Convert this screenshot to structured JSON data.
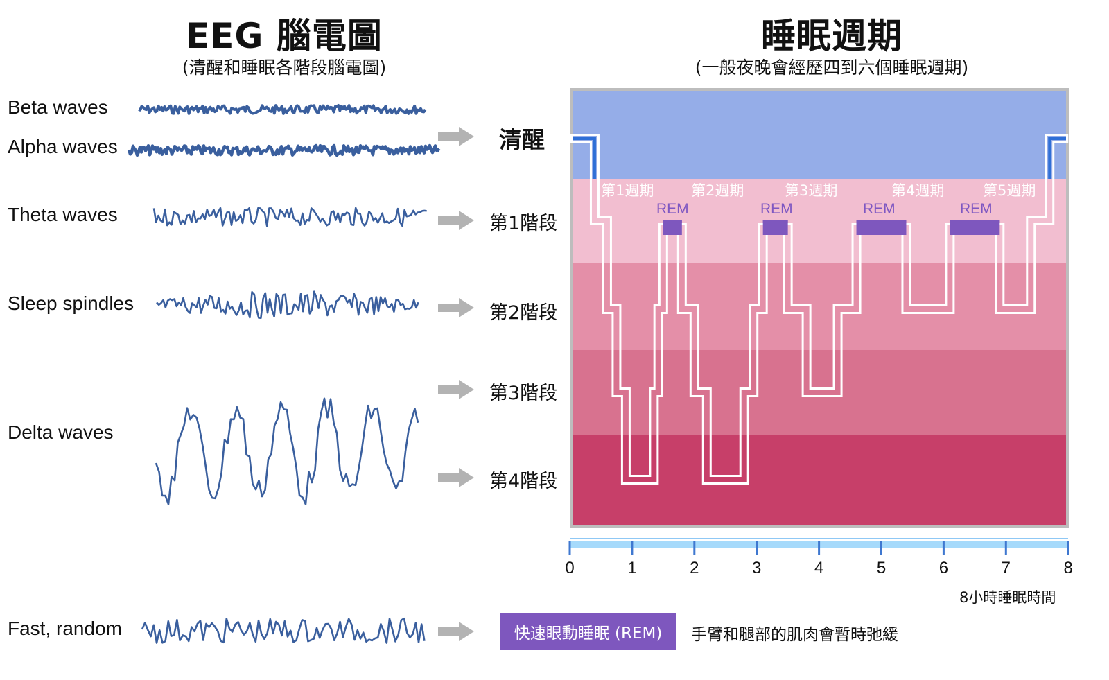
{
  "left": {
    "title": "EEG 腦電圖",
    "subtitle": "(清醒和睡眠各階段腦電圖)",
    "waves": [
      {
        "label": "Beta waves",
        "type": "beta"
      },
      {
        "label": "Alpha waves",
        "type": "alpha"
      },
      {
        "label": "Theta waves",
        "type": "theta"
      },
      {
        "label": "Sleep spindles",
        "type": "spindles"
      },
      {
        "label": "Delta waves",
        "type": "delta"
      },
      {
        "label": "Fast, random",
        "type": "fast"
      }
    ],
    "wave_color": "#3A5F9E"
  },
  "stages": [
    {
      "label": "清醒",
      "key": "awake"
    },
    {
      "label": "第1階段",
      "key": "s1"
    },
    {
      "label": "第2階段",
      "key": "s2"
    },
    {
      "label": "第3階段",
      "key": "s3"
    },
    {
      "label": "第4階段",
      "key": "s4"
    }
  ],
  "right": {
    "title": "睡眠週期",
    "subtitle": "(一般夜晚會經歷四到六個睡眠週期)",
    "cycles": [
      "第1週期",
      "第2週期",
      "第3週期",
      "第4週期",
      "第5週期"
    ],
    "rem_label": "REM",
    "axis_ticks": [
      "0",
      "1",
      "2",
      "3",
      "4",
      "5",
      "6",
      "7",
      "8"
    ],
    "axis_caption": "8小時睡眠時間",
    "legend": {
      "box_label": "快速眼動睡眠 (REM)",
      "description": "手臂和腿部的肌肉會暫時弛緩"
    }
  },
  "colors": {
    "awake": "#95ADE8",
    "s1": "#F2BED0",
    "s2": "#E48FA8",
    "s3": "#D8728F",
    "s4": "#C73F69",
    "rem": "#7E57BE",
    "awake_line": "#2F6FD6",
    "arrow": "#B3B3B3",
    "axis_bar": "#A6DAFB",
    "axis_tick": "#3F78D0"
  },
  "chart_data": {
    "type": "hypnogram",
    "title": "睡眠週期",
    "xlabel": "8小時睡眠時間",
    "xlim": [
      0,
      8
    ],
    "x_ticks": [
      0,
      1,
      2,
      3,
      4,
      5,
      6,
      7,
      8
    ],
    "y_levels": [
      "清醒",
      "REM",
      "第1階段",
      "第2階段",
      "第3階段",
      "第4階段"
    ],
    "cycles": [
      {
        "name": "第1週期",
        "rem_hours": [
          1.5,
          1.8
        ]
      },
      {
        "name": "第2週期",
        "rem_hours": [
          3.1,
          3.5
        ]
      },
      {
        "name": "第3週期",
        "rem_hours": [
          4.6,
          5.4
        ]
      },
      {
        "name": "第4週期",
        "rem_hours": [
          6.1,
          6.9
        ]
      },
      {
        "name": "第5週期",
        "rem_hours": []
      }
    ],
    "steps": [
      {
        "x": 0.0,
        "stage": "awake"
      },
      {
        "x": 0.4,
        "stage": "s1"
      },
      {
        "x": 0.6,
        "stage": "s2"
      },
      {
        "x": 0.75,
        "stage": "s3"
      },
      {
        "x": 0.9,
        "stage": "s4"
      },
      {
        "x": 1.35,
        "stage": "s3"
      },
      {
        "x": 1.42,
        "stage": "s2"
      },
      {
        "x": 1.5,
        "stage": "rem"
      },
      {
        "x": 1.8,
        "stage": "s2"
      },
      {
        "x": 2.0,
        "stage": "s3"
      },
      {
        "x": 2.2,
        "stage": "s4"
      },
      {
        "x": 2.8,
        "stage": "s3"
      },
      {
        "x": 2.95,
        "stage": "s2"
      },
      {
        "x": 3.1,
        "stage": "rem"
      },
      {
        "x": 3.5,
        "stage": "s2"
      },
      {
        "x": 3.8,
        "stage": "s3"
      },
      {
        "x": 4.3,
        "stage": "s2"
      },
      {
        "x": 4.6,
        "stage": "rem"
      },
      {
        "x": 5.4,
        "stage": "s2"
      },
      {
        "x": 6.1,
        "stage": "rem"
      },
      {
        "x": 6.9,
        "stage": "s2"
      },
      {
        "x": 7.4,
        "stage": "s1"
      },
      {
        "x": 7.7,
        "stage": "awake"
      },
      {
        "x": 8.0,
        "stage": "awake"
      }
    ]
  }
}
